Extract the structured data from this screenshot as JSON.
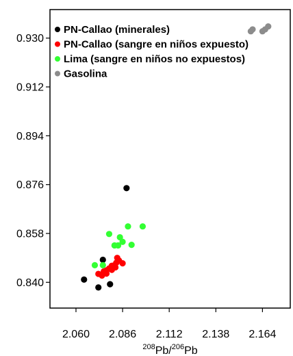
{
  "chart_data": {
    "type": "scatter",
    "title": "",
    "xlabel": {
      "parts": [
        {
          "text": "208",
          "sup": true
        },
        {
          "text": "Pb/",
          "sup": false
        },
        {
          "text": "206",
          "sup": true
        },
        {
          "text": "Pb",
          "sup": false
        }
      ]
    },
    "ylabel": "",
    "xlim": [
      2.0455,
      2.1795
    ],
    "ylim": [
      0.8305,
      0.9405
    ],
    "x_ticks": [
      2.06,
      2.086,
      2.112,
      2.138,
      2.164
    ],
    "x_tick_labels": [
      "2.060",
      "2.086",
      "2.112",
      "2.138",
      "2.164"
    ],
    "y_ticks": [
      0.84,
      0.858,
      0.876,
      0.894,
      0.912,
      0.93
    ],
    "y_tick_labels": [
      "0.840",
      "0.858",
      "0.876",
      "0.894",
      "0.912",
      "0.930"
    ],
    "grid": false,
    "legend_position": "top-left",
    "series": [
      {
        "name": "PN-Callao (minerales)",
        "color": "#000000",
        "points": [
          [
            2.0645,
            0.841
          ],
          [
            2.0725,
            0.8381
          ],
          [
            2.075,
            0.8483
          ],
          [
            2.079,
            0.8393
          ],
          [
            2.0882,
            0.8747
          ]
        ]
      },
      {
        "name": "PN-Callao (sangre en niños expuesto)",
        "color": "#ff0000",
        "points": [
          [
            2.0725,
            0.8431
          ],
          [
            2.0745,
            0.8425
          ],
          [
            2.0755,
            0.844
          ],
          [
            2.077,
            0.8432
          ],
          [
            2.0785,
            0.8451
          ],
          [
            2.08,
            0.8446
          ],
          [
            2.0812,
            0.8462
          ],
          [
            2.0825,
            0.8472
          ],
          [
            2.084,
            0.848
          ],
          [
            2.086,
            0.847
          ],
          [
            2.082,
            0.8455
          ],
          [
            2.077,
            0.8444
          ],
          [
            2.083,
            0.849
          ],
          [
            2.08,
            0.8461
          ]
        ]
      },
      {
        "name": "Lima (sangre en niños no expuestos)",
        "color": "#33ff33",
        "points": [
          [
            2.0705,
            0.8463
          ],
          [
            2.075,
            0.8463
          ],
          [
            2.0785,
            0.8578
          ],
          [
            2.0815,
            0.8536
          ],
          [
            2.0835,
            0.8536
          ],
          [
            2.0845,
            0.8566
          ],
          [
            2.089,
            0.8606
          ],
          [
            2.091,
            0.8538
          ],
          [
            2.0972,
            0.8606
          ],
          [
            2.086,
            0.8549
          ]
        ]
      },
      {
        "name": "Gasolina",
        "color": "#8c8c8c",
        "points": [
          [
            2.1575,
            0.9325
          ],
          [
            2.1585,
            0.9332
          ],
          [
            2.164,
            0.9325
          ],
          [
            2.1655,
            0.9332
          ],
          [
            2.1672,
            0.9343
          ]
        ]
      }
    ]
  }
}
